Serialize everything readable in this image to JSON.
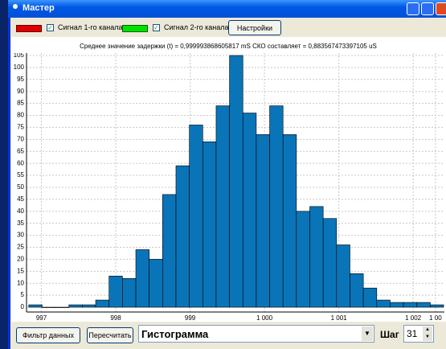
{
  "window": {
    "title": "Мастер"
  },
  "toolbar": {
    "channel1": "Сигнал 1-го канала",
    "channel2": "Сигнал 2-го канала",
    "settings": "Настройки"
  },
  "chart_data": {
    "type": "histogram",
    "title": "Среднее значение задержки (t) = 0,999993868605817 mS СКО составляет = 0,883567473397105 uS",
    "bins": [
      996.83,
      997.01,
      997.19,
      997.37,
      997.55,
      997.73,
      997.91,
      998.09,
      998.27,
      998.45,
      998.63,
      998.81,
      998.99,
      999.17,
      999.35,
      999.53,
      999.71,
      999.89,
      1000.07,
      1000.25,
      1000.43,
      1000.61,
      1000.79,
      1000.97,
      1001.15,
      1001.33,
      1001.51,
      1001.69,
      1001.87,
      1002.05,
      1002.23,
      1002.41
    ],
    "values": [
      1,
      0,
      0,
      1,
      1,
      3,
      13,
      12,
      24,
      20,
      47,
      59,
      76,
      69,
      84,
      105,
      81,
      72,
      84,
      72,
      40,
      42,
      37,
      26,
      14,
      8,
      3,
      2,
      2,
      2,
      1
    ],
    "color": "#0a74b8",
    "xlim": [
      996.8,
      1002.42
    ],
    "xticks": [
      997,
      998,
      999,
      {
        "value": 1000,
        "label": "1 000"
      },
      {
        "value": 1001,
        "label": "1 001"
      },
      {
        "value": 1002,
        "label": "1 002"
      },
      {
        "value": 1002.3,
        "label": "1 00"
      }
    ],
    "ylim": [
      -2,
      106
    ],
    "yticks": [
      0,
      5,
      10,
      15,
      20,
      25,
      30,
      35,
      40,
      45,
      50,
      55,
      60,
      65,
      70,
      75,
      80,
      85,
      90,
      95,
      100,
      105
    ],
    "grid": true
  },
  "controls": {
    "filter": "Фильтр данных",
    "recalc": "Пересчитать",
    "mode": "Гистограмма",
    "step_label": "Шаг",
    "step": "31"
  }
}
